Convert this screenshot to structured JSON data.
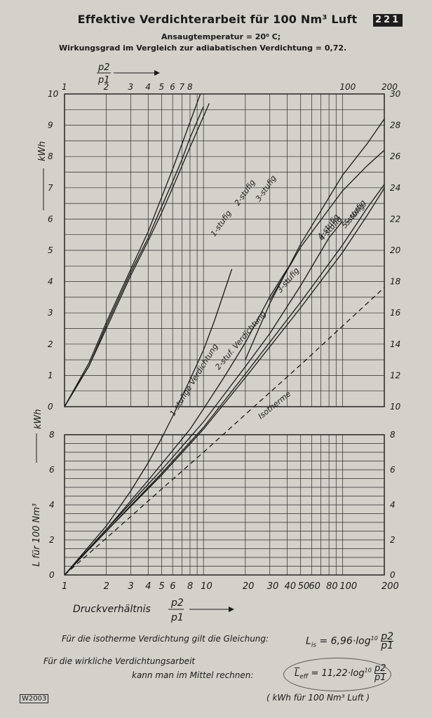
{
  "header": {
    "title": "Effektive Verdichterarbeit für 100 Nm³ Luft",
    "badge": "221",
    "subtitle_1": "Ansaugtemperatur = 20⁰ C;",
    "subtitle_2": "Wirkungsgrad im Vergleich zur adiabatischen Verdichtung = 0,72."
  },
  "footer": {
    "eq1_text": "Für die isotherme Verdichtung gilt die Gleichung:",
    "eq1_formula": "L",
    "eq1_sub": "is",
    "eq1_rest": "= 6,96·log",
    "eq2_text_a": "Für die wirkliche Verdichtungsarbeit",
    "eq2_text_b": "kann man im Mittel rechnen:",
    "eq2_formula": "L",
    "eq2_sub": "eff",
    "eq2_rest": "= 11,22·log",
    "eq_log_base": "10",
    "eq_unit": "( kWh für 100 Nm³ Luft )",
    "code": "W2003"
  },
  "chart_data": [
    {
      "type": "line",
      "panel": "lower",
      "x_scale": "log",
      "xlim": [
        1,
        200
      ],
      "ylim": [
        0,
        8
      ],
      "x_ticks": [
        1,
        2,
        3,
        4,
        5,
        6,
        8,
        10,
        20,
        30,
        40,
        50,
        60,
        80,
        100,
        200
      ],
      "x_tick_labels": [
        "1",
        "2",
        "3",
        "4",
        "5",
        "6",
        "8",
        "10",
        "20",
        "30",
        "40",
        "50",
        "60",
        "80",
        "100",
        "200"
      ],
      "y_ticks_left": [
        0,
        2,
        4,
        6,
        8
      ],
      "y_ticks_right": [
        0,
        2,
        4,
        6,
        8
      ],
      "xlabel": "Druckverhältnis",
      "xlabel_frac_num": "p2",
      "xlabel_frac_den": "p1",
      "ylabel": "L für 100 Nm³",
      "ylabel_unit": "kWh",
      "grid": true,
      "series": [
        {
          "name": "Isotherme",
          "style": "dashed",
          "x": [
            1,
            2,
            5,
            10,
            20,
            50,
            100,
            200
          ],
          "y": [
            0,
            2.1,
            4.9,
            7.0,
            9.1,
            11.8,
            13.9,
            16.0
          ]
        },
        {
          "name": "1-stufige Verdichtung",
          "style": "solid",
          "x": [
            1,
            2,
            3,
            4,
            5,
            6,
            8,
            10,
            12,
            16
          ],
          "y": [
            0,
            2.8,
            4.8,
            6.4,
            7.8,
            9.0,
            11.0,
            12.6,
            14.2,
            17.0
          ]
        },
        {
          "name": "2-stuf. Verdichtung",
          "style": "solid",
          "x": [
            1,
            2,
            4,
            6,
            8,
            10,
            14,
            20,
            30,
            40
          ],
          "y": [
            0,
            2.6,
            5.4,
            7.1,
            8.3,
            9.4,
            11.1,
            13.0,
            15.5,
            17.0
          ]
        },
        {
          "name": "3-stufig",
          "style": "solid",
          "x": [
            1,
            2,
            5,
            10,
            20,
            30,
            50,
            80,
            100
          ],
          "y": [
            0,
            2.6,
            6.0,
            8.7,
            11.7,
            13.5,
            16.1,
            18.7,
            19.6
          ]
        },
        {
          "name": "4-stufig",
          "style": "solid",
          "x": [
            1,
            2,
            5,
            10,
            20,
            50,
            100,
            150,
            200
          ],
          "y": [
            0,
            2.5,
            5.8,
            8.4,
            11.3,
            15.2,
            18.3,
            20.3,
            21.6
          ]
        },
        {
          "name": "5-stufig",
          "style": "solid",
          "x": [
            1,
            2,
            5,
            10,
            20,
            50,
            100,
            150,
            200
          ],
          "y": [
            0,
            2.5,
            5.7,
            8.3,
            11.1,
            14.9,
            17.9,
            19.9,
            21.4
          ]
        }
      ]
    },
    {
      "type": "line",
      "panel": "upper",
      "x_scale": "log",
      "xlim": [
        1,
        200
      ],
      "ylim": [
        0,
        10
      ],
      "x_ticks": [
        1,
        2,
        3,
        4,
        5,
        6,
        7,
        8,
        100,
        200
      ],
      "x_tick_labels": [
        "1",
        "2",
        "3",
        "4",
        "5",
        "6",
        "7",
        "8",
        "100",
        "200"
      ],
      "xlabel_frac_num": "p2",
      "xlabel_frac_den": "p1",
      "y_ticks_left": [
        0,
        1,
        2,
        3,
        4,
        5,
        6,
        7,
        8,
        9,
        10
      ],
      "y_ticks_right": [
        10,
        12,
        14,
        16,
        18,
        20,
        22,
        24,
        26,
        28,
        30
      ],
      "ylabel_unit": "kWh",
      "grid": true,
      "series": [
        {
          "name": "1-stufig",
          "style": "solid",
          "x": [
            1,
            1.5,
            2,
            3,
            4,
            5,
            6,
            7,
            8,
            9.5
          ],
          "y": [
            0,
            1.4,
            2.7,
            4.4,
            5.6,
            6.7,
            7.6,
            8.4,
            9.1,
            10.0
          ]
        },
        {
          "name": "2-stufig",
          "style": "solid",
          "x": [
            1,
            1.5,
            2,
            3,
            4,
            5,
            6,
            7,
            8,
            10
          ],
          "y": [
            0,
            1.3,
            2.6,
            4.3,
            5.4,
            6.4,
            7.2,
            7.9,
            8.6,
            9.6
          ]
        },
        {
          "name": "3-stufig",
          "style": "solid",
          "x": [
            1,
            1.5,
            2,
            3,
            4,
            5,
            6,
            7,
            8,
            11
          ],
          "y": [
            0,
            1.3,
            2.5,
            4.2,
            5.3,
            6.2,
            7.0,
            7.7,
            8.3,
            9.7
          ]
        },
        {
          "name": "4-stufig",
          "style": "solid",
          "x": [
            20,
            30,
            50,
            100,
            150,
            200
          ],
          "y": [
            1.5,
            3.3,
            5.2,
            7.4,
            8.4,
            9.2
          ]
        },
        {
          "name": "5-stufig",
          "style": "solid",
          "x": [
            30,
            50,
            100,
            150,
            200
          ],
          "y": [
            3.4,
            5.1,
            6.9,
            7.7,
            8.2
          ]
        }
      ]
    }
  ]
}
